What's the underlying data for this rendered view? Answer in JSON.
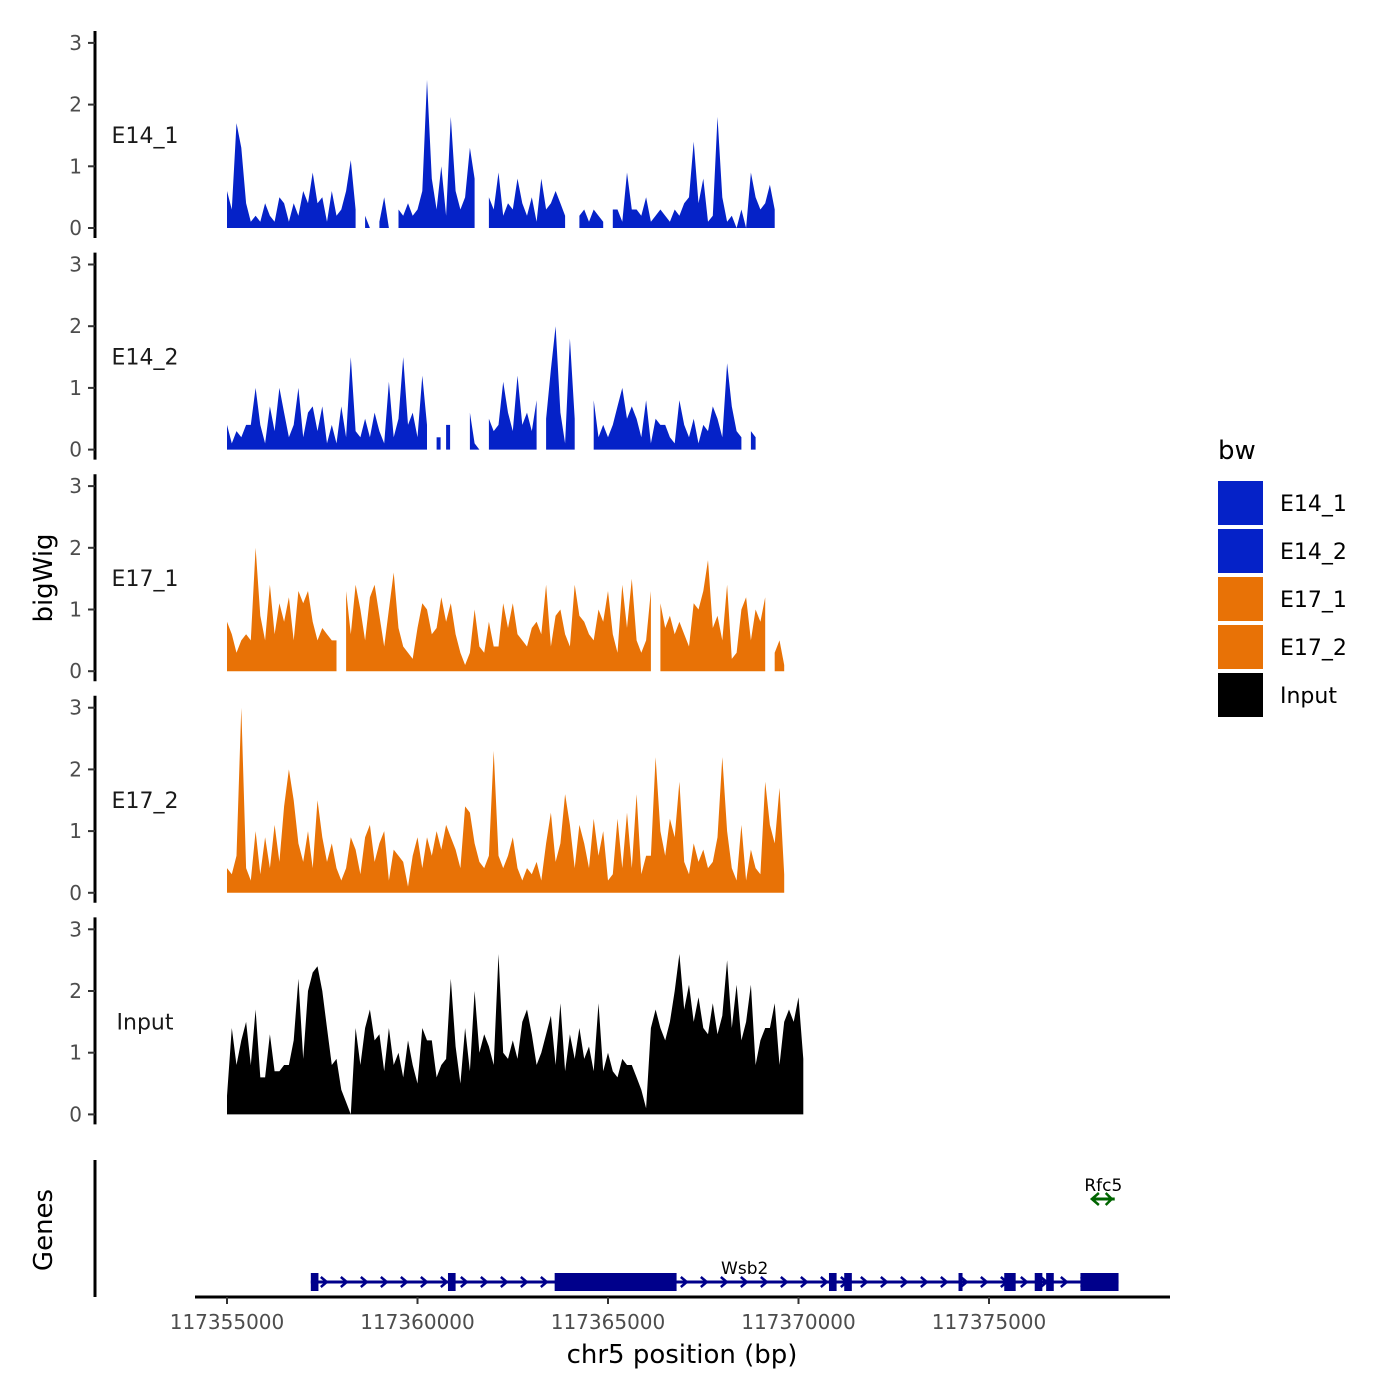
{
  "chart_data": {
    "type": "area",
    "ylabel": "bigWig",
    "xlabel": "chr5 position (bp)",
    "genes_label": "Genes",
    "ylim": [
      0,
      3
    ],
    "yticks": [
      "0",
      "1",
      "2",
      "3"
    ],
    "xlim": [
      117354000,
      117380500
    ],
    "xticks": [
      117355000,
      117360000,
      117365000,
      117370000,
      117375000
    ],
    "xtick_labels": [
      "117355000",
      "117360000",
      "117365000",
      "117370000",
      "117375000"
    ],
    "legend": {
      "title": "bw",
      "entries": [
        {
          "label": "E14_1",
          "color": "#0522c8"
        },
        {
          "label": "E14_2",
          "color": "#0522c8"
        },
        {
          "label": "E17_1",
          "color": "#e87206"
        },
        {
          "label": "E17_2",
          "color": "#e87206"
        },
        {
          "label": "Input",
          "color": "#000000"
        }
      ]
    },
    "tracks": [
      {
        "name": "E14_1",
        "color": "#0522c8",
        "x_start": 117355000,
        "x_step": 125,
        "values": [
          0.6,
          0.3,
          1.7,
          1.3,
          0.4,
          0.1,
          0.2,
          0.1,
          0.4,
          0.2,
          0.1,
          0.5,
          0.4,
          0.1,
          0.4,
          0.2,
          0.6,
          0.4,
          0.9,
          0.4,
          0.5,
          0.1,
          0.6,
          0.2,
          0.3,
          0.6,
          1.1,
          0.3,
          null,
          0.2,
          0,
          null,
          0.1,
          0.5,
          0,
          null,
          0.3,
          0.2,
          0.4,
          0.2,
          0.3,
          0.6,
          2.4,
          0.8,
          0.3,
          1.0,
          0.2,
          1.8,
          0.6,
          0.3,
          0.5,
          1.3,
          0.8,
          null,
          null,
          0.5,
          0.3,
          0.9,
          0.2,
          0.4,
          0.3,
          0.8,
          0.4,
          0.2,
          0.5,
          0.1,
          0.8,
          0.3,
          0.4,
          0.6,
          0.4,
          0.2,
          null,
          null,
          0.2,
          0.3,
          0.1,
          0.3,
          0.2,
          0.1,
          null,
          0.3,
          0.3,
          0.1,
          0.9,
          0.3,
          0.3,
          0.2,
          0.5,
          0.1,
          0.2,
          0.3,
          0.2,
          0.1,
          0.3,
          0.2,
          0.4,
          0.5,
          1.4,
          0.4,
          0.8,
          0.1,
          0.2,
          1.8,
          0.5,
          0.1,
          0.2,
          0,
          0.3,
          0,
          0.9,
          0.5,
          0.3,
          0.4,
          0.7,
          0.3
        ]
      },
      {
        "name": "E14_2",
        "color": "#0522c8",
        "x_start": 117355000,
        "x_step": 125,
        "values": [
          0.4,
          0.1,
          0.3,
          0.2,
          0.4,
          0.4,
          1.0,
          0.4,
          0.1,
          0.7,
          0.3,
          1.0,
          0.6,
          0.2,
          0.4,
          1.0,
          0.2,
          0.6,
          0.7,
          0.3,
          0.7,
          0.1,
          0.4,
          0.1,
          0.7,
          0.2,
          1.5,
          0.3,
          0.2,
          0.5,
          0.2,
          0.6,
          0.3,
          0.1,
          1.1,
          0.2,
          0.5,
          1.5,
          0.4,
          0.6,
          0.2,
          1.2,
          0.4,
          null,
          0.2,
          null,
          0.4,
          null,
          null,
          null,
          null,
          0.6,
          0.1,
          0,
          null,
          0.5,
          0.3,
          0.4,
          1.1,
          0.6,
          0.3,
          1.2,
          0.4,
          0.6,
          0.3,
          0.8,
          null,
          0.5,
          1.3,
          2.0,
          0.6,
          0.1,
          1.8,
          0.5,
          null,
          null,
          null,
          0.8,
          0.2,
          0.4,
          0.2,
          0.4,
          0.7,
          1.0,
          0.5,
          0.7,
          0.5,
          0.2,
          0.8,
          0.1,
          0.5,
          0.4,
          0.4,
          0.2,
          0.1,
          0.8,
          0.4,
          0.2,
          0.5,
          0.1,
          0.4,
          0.3,
          0.7,
          0.5,
          0.2,
          1.4,
          0.7,
          0.3,
          0.2,
          null,
          0.3,
          0.2
        ]
      },
      {
        "name": "E17_1",
        "color": "#e87206",
        "x_start": 117355000,
        "x_step": 125,
        "values": [
          0.8,
          0.6,
          0.3,
          0.5,
          0.6,
          0.5,
          2.0,
          0.9,
          0.5,
          1.4,
          0.6,
          1.1,
          0.8,
          1.2,
          0.5,
          1.3,
          1.1,
          1.3,
          0.8,
          0.5,
          0.7,
          0.6,
          0.5,
          0.5,
          null,
          1.3,
          0.6,
          1.4,
          1.0,
          0.5,
          1.2,
          1.4,
          0.9,
          0.4,
          1.0,
          1.6,
          0.7,
          0.4,
          0.3,
          0.2,
          0.7,
          1.1,
          1.0,
          0.6,
          0.7,
          1.2,
          0.8,
          1.1,
          0.6,
          0.3,
          0.1,
          0.3,
          1.0,
          0.4,
          0.3,
          0.8,
          0.4,
          0.4,
          1.1,
          0.7,
          1.1,
          0.6,
          0.5,
          0.4,
          0.7,
          0.8,
          0.6,
          1.4,
          0.4,
          0.9,
          1.0,
          0.6,
          0.4,
          1.4,
          0.9,
          0.8,
          0.6,
          0.5,
          1.0,
          0.8,
          1.3,
          0.6,
          0.3,
          1.4,
          0.7,
          1.5,
          0.5,
          0.3,
          0.5,
          1.3,
          null,
          1.1,
          0.7,
          0.9,
          0.6,
          0.8,
          0.6,
          0.4,
          1.1,
          1.0,
          1.3,
          1.8,
          0.7,
          0.9,
          0.5,
          1.4,
          0.2,
          0.3,
          1.0,
          1.2,
          0.5,
          1.0,
          0.8,
          1.2,
          null,
          0.3,
          0.5,
          0.1
        ]
      },
      {
        "name": "E17_2",
        "color": "#e87206",
        "x_start": 117355000,
        "x_step": 125,
        "values": [
          0.4,
          0.3,
          0.6,
          3.0,
          0.4,
          0.2,
          1.0,
          0.3,
          0.9,
          0.4,
          1.1,
          0.5,
          1.4,
          2.0,
          1.5,
          0.8,
          0.5,
          1.0,
          0.4,
          1.5,
          0.9,
          0.5,
          0.8,
          0.4,
          0.2,
          0.4,
          0.9,
          0.7,
          0.3,
          0.9,
          1.1,
          0.5,
          0.8,
          1.0,
          0.2,
          0.7,
          0.6,
          0.5,
          0.1,
          0.6,
          0.9,
          0.4,
          0.9,
          0.6,
          1.0,
          0.7,
          1.1,
          0.9,
          0.7,
          0.4,
          1.4,
          1.3,
          0.8,
          0.5,
          0.4,
          0.6,
          2.3,
          0.6,
          0.4,
          0.6,
          0.9,
          0.4,
          0.2,
          0.4,
          0.3,
          0.5,
          0.2,
          0.8,
          1.3,
          0.5,
          0.8,
          1.6,
          1.1,
          0.4,
          1.1,
          0.8,
          0.4,
          1.2,
          0.6,
          1.0,
          0.2,
          0.3,
          1.2,
          0.4,
          1.3,
          0.4,
          1.6,
          0.3,
          0.6,
          0.6,
          2.2,
          1.0,
          0.6,
          1.2,
          0.9,
          1.8,
          0.5,
          0.3,
          0.8,
          0.5,
          0.7,
          0.4,
          0.5,
          0.9,
          2.2,
          1.0,
          0.4,
          0.2,
          1.1,
          0.2,
          0.7,
          0.4,
          0.3,
          1.8,
          1.1,
          0.8,
          1.7,
          0.3
        ]
      },
      {
        "name": "Input",
        "color": "#000000",
        "x_start": 117355000,
        "x_step": 125,
        "values": [
          0.3,
          1.4,
          0.8,
          1.2,
          1.5,
          0.8,
          1.7,
          0.6,
          0.6,
          1.3,
          0.7,
          0.7,
          0.8,
          0.8,
          1.2,
          2.2,
          0.9,
          2.0,
          2.3,
          2.4,
          2.0,
          1.4,
          0.8,
          0.9,
          0.4,
          0.2,
          0,
          1.4,
          0.8,
          1.4,
          1.7,
          1.2,
          1.3,
          0.7,
          1.4,
          0.8,
          1.0,
          0.6,
          1.2,
          0.8,
          0.5,
          1.4,
          1.2,
          1.2,
          0.6,
          0.8,
          0.9,
          2.2,
          1.1,
          0.5,
          1.4,
          0.7,
          2.0,
          1.0,
          1.3,
          1.1,
          0.8,
          2.6,
          1.0,
          0.9,
          1.2,
          0.9,
          1.5,
          1.7,
          1.3,
          0.8,
          1.0,
          1.3,
          1.6,
          0.8,
          1.8,
          0.7,
          1.3,
          0.9,
          1.4,
          0.9,
          1.1,
          0.7,
          1.8,
          0.7,
          1.0,
          0.7,
          0.6,
          0.9,
          0.8,
          0.8,
          0.6,
          0.4,
          0.1,
          1.4,
          1.7,
          1.4,
          1.2,
          1.5,
          2.0,
          2.6,
          1.7,
          2.1,
          1.5,
          1.9,
          1.4,
          1.3,
          1.8,
          1.3,
          1.6,
          2.5,
          1.4,
          2.1,
          1.2,
          1.5,
          2.1,
          0.8,
          1.2,
          1.4,
          1.4,
          1.8,
          0.8,
          1.5,
          1.7,
          1.5,
          1.9,
          0.9
        ]
      }
    ],
    "genes": [
      {
        "name": "Wsb2",
        "color": "#00008b",
        "strand": "+",
        "start": 117357200,
        "end": 117378400,
        "exons": [
          [
            117357200,
            117357400
          ],
          [
            117360800,
            117361000
          ],
          [
            117363600,
            117366800
          ],
          [
            117370800,
            117371000
          ],
          [
            117371200,
            117371400
          ],
          [
            117374200,
            117374300
          ],
          [
            117375400,
            117375700
          ],
          [
            117376200,
            117376400
          ],
          [
            117376500,
            117376700
          ],
          [
            117377400,
            117378400
          ]
        ]
      },
      {
        "name": "Rfc5",
        "color": "#006400",
        "strand": "-",
        "start": 117377700,
        "end": 117378300,
        "exons": []
      }
    ]
  }
}
